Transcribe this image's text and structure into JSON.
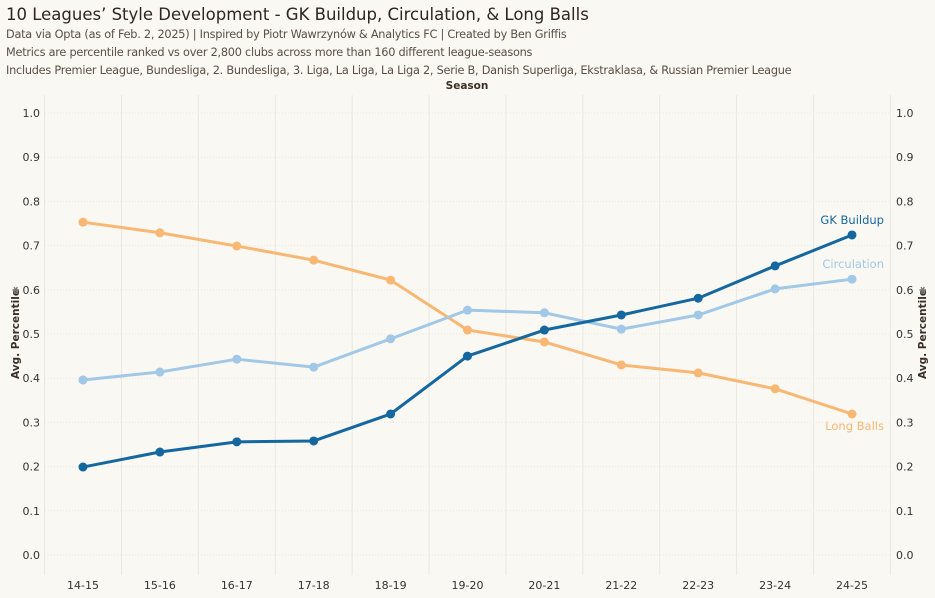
{
  "header": {
    "title": "10 Leagues’ Style Development - GK Buildup, Circulation, & Long Balls",
    "subtitle_lines": [
      "Data via Opta (as of Feb. 2, 2025) | Inspired by Piotr Wawrzynów & Analytics FC | Created by Ben Griffis",
      "Metrics are percentile ranked vs over 2,800 clubs across more than 160 different league-seasons",
      "Includes Premier League, Bundesliga, 2. Bundesliga, 3. Liga, La Liga, La Liga 2, Serie B, Danish Superliga, Ekstraklasa, & Russian Premier League"
    ]
  },
  "chart_data": {
    "type": "line",
    "xlabel": "Season",
    "ylabel": "Avg. Percentile",
    "ylabel_icon": "sort-icon",
    "ylim": [
      0,
      1
    ],
    "yticks": [
      "0.0",
      "0.1",
      "0.2",
      "0.3",
      "0.4",
      "0.5",
      "0.6",
      "0.7",
      "0.8",
      "0.9",
      "1.0"
    ],
    "grid": true,
    "categories": [
      "14-15",
      "15-16",
      "16-17",
      "17-18",
      "18-19",
      "19-20",
      "20-21",
      "21-22",
      "22-23",
      "23-24",
      "24-25"
    ],
    "series": [
      {
        "name": "Long Balls",
        "color": "#f9b774",
        "values": [
          0.753,
          0.729,
          0.699,
          0.667,
          0.622,
          0.509,
          0.482,
          0.43,
          0.412,
          0.376,
          0.319
        ]
      },
      {
        "name": "Circulation",
        "color": "#a1c8e6",
        "values": [
          0.396,
          0.414,
          0.443,
          0.425,
          0.489,
          0.554,
          0.548,
          0.511,
          0.543,
          0.602,
          0.624
        ]
      },
      {
        "name": "GK Buildup",
        "color": "#15689f",
        "values": [
          0.199,
          0.233,
          0.256,
          0.258,
          0.319,
          0.45,
          0.509,
          0.543,
          0.581,
          0.654,
          0.724
        ]
      }
    ]
  }
}
